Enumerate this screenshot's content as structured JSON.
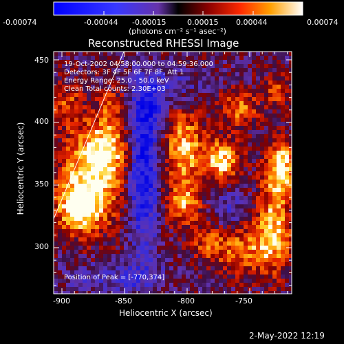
{
  "colorbar": {
    "tick_labels": [
      "-0.00074",
      "-0.00044",
      "-0.00015",
      "0.00015",
      "0.00044",
      "0.00074"
    ],
    "units": "(photons cm⁻² s⁻¹ asec⁻²)"
  },
  "title": "Reconstructed RHESSI Image",
  "overlay": {
    "line1": "19-Oct-2002 04:58:00.000 to 04:59:36.000",
    "line2": "Detectors: 3F 4F 5F 6F 7F 8F, Att 1",
    "line3": "Energy Range: 25.0 - 50.0 keV",
    "line4": "Clean     Total counts: 2.30E+03",
    "peak": "Position of Peak = [-770,374]"
  },
  "axes": {
    "xlabel": "Heliocentric X (arcsec)",
    "ylabel": "Heliocentric Y (arcsec)",
    "xticks": [
      "-900",
      "-850",
      "-800",
      "-750"
    ],
    "yticks": [
      "300",
      "350",
      "400",
      "450"
    ]
  },
  "timestamp": "2-May-2022 12:19"
}
